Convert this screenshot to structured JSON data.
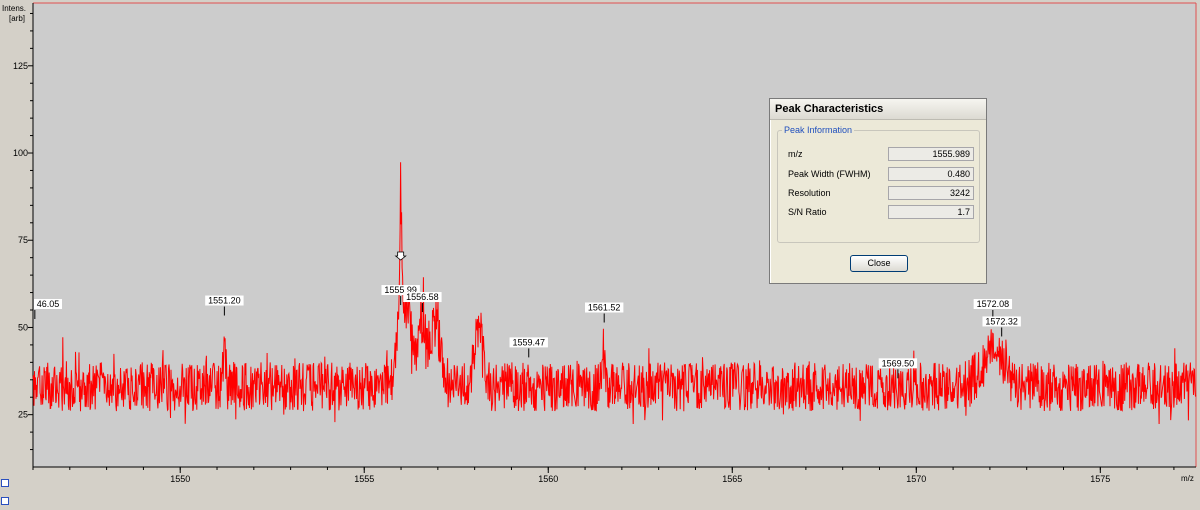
{
  "chart_data": {
    "type": "line",
    "ylabel_line1": "Intens.",
    "ylabel_line2": "[arb]",
    "xlabel": "m/z",
    "xlim": [
      1546.0,
      1577.6
    ],
    "ylim": [
      10,
      143
    ],
    "x_ticks": [
      1550,
      1555,
      1560,
      1565,
      1570,
      1575
    ],
    "y_ticks": [
      25,
      50,
      75,
      100,
      125
    ],
    "grid": false,
    "series_color": "#ff0000",
    "baseline_intensity": 33,
    "noise_amplitude": 7,
    "features": [
      {
        "x": 1556.1,
        "height": 28,
        "width": 0.25
      },
      {
        "x": 1555.99,
        "height": 35,
        "width": 0.05
      },
      {
        "x": 1556.58,
        "height": 20,
        "width": 0.15
      },
      {
        "x": 1556.95,
        "height": 22,
        "width": 0.2
      },
      {
        "x": 1558.1,
        "height": 20,
        "width": 0.15
      },
      {
        "x": 1572.1,
        "height": 14,
        "width": 0.4
      },
      {
        "x": 1561.52,
        "height": 12,
        "width": 0.05
      },
      {
        "x": 1551.2,
        "height": 14,
        "width": 0.05
      }
    ],
    "peaks": [
      {
        "label": "46.05",
        "x": 1546.05,
        "y": 55
      },
      {
        "label": "1551.20",
        "x": 1551.2,
        "y": 56
      },
      {
        "label": "1555.99",
        "x": 1555.99,
        "y": 59
      },
      {
        "label": "1556.58",
        "x": 1556.58,
        "y": 57
      },
      {
        "label": "1559.47",
        "x": 1559.47,
        "y": 44
      },
      {
        "label": "1561.52",
        "x": 1561.52,
        "y": 54
      },
      {
        "label": "1569.50",
        "x": 1569.5,
        "y": 38
      },
      {
        "label": "1572.08",
        "x": 1572.08,
        "y": 55
      },
      {
        "label": "1572.32",
        "x": 1572.32,
        "y": 50
      }
    ],
    "marker_x": 1555.99
  },
  "dialog": {
    "title": "Peak Characteristics",
    "group_label": "Peak Information",
    "fields": [
      {
        "label": "m/z",
        "value": "1555.989"
      },
      {
        "label": "Peak Width (FWHM)",
        "value": "0.480"
      },
      {
        "label": "Resolution",
        "value": "3242"
      },
      {
        "label": "S/N Ratio",
        "value": "1.7"
      }
    ],
    "close_label": "Close"
  }
}
